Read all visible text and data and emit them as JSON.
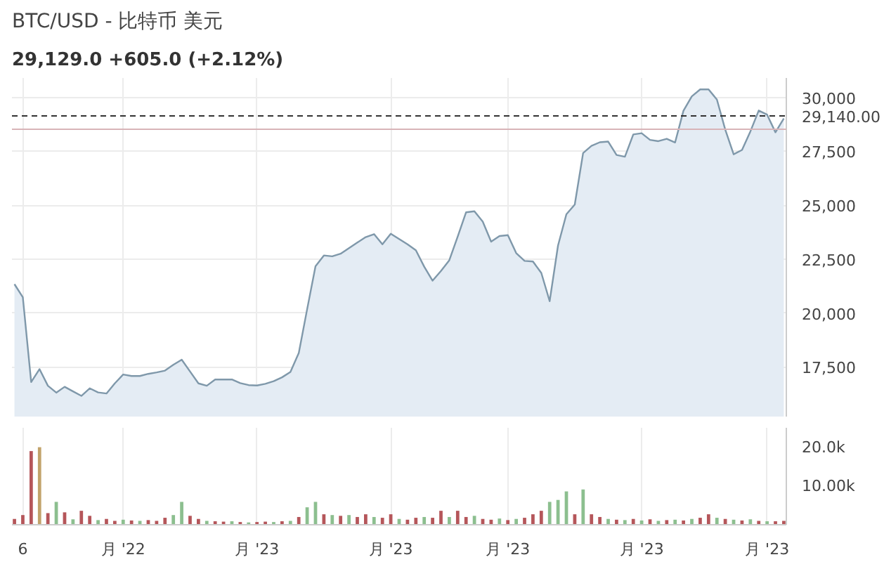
{
  "chart_data": [
    {
      "type": "area",
      "title": "BTC/USD - 比特币 美元",
      "subtitle": "29,129.0 +605.0 (+2.12%)",
      "color": "#7f98aa",
      "grid": true,
      "categories": [
        null,
        null,
        null,
        null,
        null,
        null,
        null,
        null,
        null,
        null,
        null,
        null,
        null,
        null,
        null,
        null,
        null,
        null,
        null,
        null,
        null,
        null,
        null,
        null,
        null,
        null,
        null,
        null,
        null,
        null,
        null,
        null,
        null,
        null,
        null,
        null,
        null,
        null,
        null,
        null,
        null,
        null,
        null,
        null,
        null,
        null,
        null,
        null,
        null,
        null,
        null,
        null,
        null,
        null,
        null,
        null,
        null,
        null,
        null,
        null,
        null,
        null,
        null,
        null,
        null,
        null,
        null,
        null,
        null,
        null,
        null,
        null,
        null,
        null,
        null,
        null,
        null,
        null,
        null,
        null,
        null,
        null,
        null,
        null,
        null,
        null,
        null,
        null,
        null,
        null,
        null,
        null,
        null
      ],
      "values": [
        21340,
        20730,
        16800,
        17400,
        16630,
        16310,
        16580,
        16370,
        16160,
        16510,
        16320,
        16270,
        16740,
        17150,
        17080,
        17080,
        17180,
        17250,
        17330,
        17600,
        17840,
        17290,
        16740,
        16630,
        16920,
        16920,
        16920,
        16750,
        16660,
        16640,
        16720,
        16840,
        17020,
        17270,
        18150,
        20180,
        22170,
        22670,
        22630,
        22750,
        23010,
        23270,
        23520,
        23660,
        23190,
        23680,
        23430,
        23190,
        22910,
        22150,
        21500,
        21950,
        22450,
        23540,
        24670,
        24720,
        24240,
        23310,
        23570,
        23610,
        22780,
        22420,
        22390,
        21860,
        20550,
        23130,
        24580,
        25030,
        27420,
        27750,
        27920,
        27950,
        27330,
        27250,
        28280,
        28340,
        28030,
        27970,
        28080,
        27910,
        29380,
        30050,
        30370,
        30370,
        29900,
        28500,
        27360,
        27560,
        28420,
        29390,
        29200,
        28380,
        29020
      ],
      "ylim": [
        15200,
        30900
      ],
      "yticks": [
        {
          "value": 17500,
          "label": "17,500"
        },
        {
          "value": 20000,
          "label": "20,000"
        },
        {
          "value": 22500,
          "label": "22,500"
        },
        {
          "value": 25000,
          "label": "25,000"
        },
        {
          "value": 27500,
          "label": "27,500"
        },
        {
          "value": 30000,
          "label": "30,000"
        }
      ],
      "ref_lines": [
        {
          "axis": "y",
          "value": 29140,
          "label": "29,140.00",
          "color": "#333333",
          "line_style": "dashed"
        },
        {
          "axis": "y",
          "value": 28520,
          "label": null,
          "color": "#d8b4b8",
          "line_style": "solid"
        }
      ]
    },
    {
      "type": "bar",
      "grid": "x",
      "categories": [
        null,
        "6",
        null,
        null,
        null,
        null,
        null,
        null,
        null,
        null,
        null,
        null,
        null,
        "月 '22",
        null,
        null,
        null,
        null,
        null,
        null,
        null,
        null,
        null,
        null,
        null,
        null,
        null,
        null,
        null,
        "月 '23",
        null,
        null,
        null,
        null,
        null,
        null,
        null,
        null,
        null,
        null,
        null,
        null,
        null,
        null,
        null,
        "月 '23",
        null,
        null,
        null,
        null,
        null,
        null,
        null,
        null,
        null,
        null,
        null,
        null,
        null,
        "月 '23",
        null,
        null,
        null,
        null,
        null,
        null,
        null,
        null,
        null,
        null,
        null,
        null,
        null,
        null,
        null,
        "月 '23",
        null,
        null,
        null,
        null,
        null,
        null,
        null,
        null,
        null,
        null,
        null,
        null,
        null,
        null,
        "月 '23",
        null,
        null
      ],
      "values": [
        1500,
        2500,
        19000,
        20000,
        3000,
        5900,
        3200,
        1400,
        3600,
        2300,
        1200,
        1500,
        1000,
        1300,
        1100,
        1000,
        1200,
        1000,
        1800,
        2500,
        5900,
        2300,
        1500,
        1000,
        900,
        800,
        900,
        700,
        600,
        700,
        800,
        700,
        900,
        1000,
        2000,
        4500,
        5900,
        2700,
        2500,
        2300,
        2500,
        2000,
        2700,
        2000,
        1800,
        2700,
        1500,
        1300,
        1800,
        2000,
        1800,
        3600,
        2000,
        3600,
        2000,
        2300,
        1500,
        1300,
        1600,
        1200,
        1500,
        1800,
        2700,
        3600,
        5900,
        6400,
        8600,
        2700,
        9100,
        2700,
        2000,
        1500,
        1300,
        1200,
        1500,
        1100,
        1400,
        1000,
        1200,
        1300,
        1100,
        1500,
        1800,
        2700,
        1800,
        1500,
        1300,
        1100,
        1400,
        1000,
        900,
        900,
        1000
      ],
      "colors": [
        "#b5565a",
        "#b5565a",
        "#b5565a",
        "#c2a36b",
        "#b5565a",
        "#8cbf8f",
        "#b5565a",
        "#8cbf8f",
        "#b5565a",
        "#b5565a",
        "#8cbf8f",
        "#b5565a",
        "#b5565a",
        "#8cbf8f",
        "#b5565a",
        "#8cbf8f",
        "#b5565a",
        "#b5565a",
        "#b5565a",
        "#8cbf8f",
        "#8cbf8f",
        "#b5565a",
        "#b5565a",
        "#8cbf8f",
        "#b5565a",
        "#b5565a",
        "#8cbf8f",
        "#b5565a",
        "#8cbf8f",
        "#b5565a",
        "#b5565a",
        "#8cbf8f",
        "#b5565a",
        "#8cbf8f",
        "#b5565a",
        "#8cbf8f",
        "#8cbf8f",
        "#b5565a",
        "#8cbf8f",
        "#b5565a",
        "#8cbf8f",
        "#b5565a",
        "#b5565a",
        "#8cbf8f",
        "#b5565a",
        "#b5565a",
        "#8cbf8f",
        "#b5565a",
        "#b5565a",
        "#8cbf8f",
        "#b5565a",
        "#b5565a",
        "#8cbf8f",
        "#b5565a",
        "#b5565a",
        "#8cbf8f",
        "#b5565a",
        "#b5565a",
        "#8cbf8f",
        "#b5565a",
        "#8cbf8f",
        "#b5565a",
        "#b5565a",
        "#b5565a",
        "#8cbf8f",
        "#8cbf8f",
        "#8cbf8f",
        "#b5565a",
        "#8cbf8f",
        "#b5565a",
        "#b5565a",
        "#8cbf8f",
        "#b5565a",
        "#8cbf8f",
        "#b5565a",
        "#8cbf8f",
        "#b5565a",
        "#8cbf8f",
        "#b5565a",
        "#8cbf8f",
        "#b5565a",
        "#8cbf8f",
        "#b5565a",
        "#b5565a",
        "#8cbf8f",
        "#b5565a",
        "#8cbf8f",
        "#b5565a",
        "#8cbf8f",
        "#b5565a",
        "#8cbf8f",
        "#b5565a",
        "#b5565a"
      ],
      "ylim": [
        0,
        25000
      ],
      "yticks": [
        {
          "value": 10000,
          "label": "10.00k"
        },
        {
          "value": 20000,
          "label": "20.0k"
        }
      ]
    }
  ]
}
